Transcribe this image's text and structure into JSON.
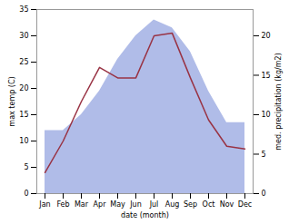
{
  "chart_data": {
    "type": "line",
    "categories": [
      "Jan",
      "Feb",
      "Mar",
      "Apr",
      "May",
      "Jun",
      "Jul",
      "Aug",
      "Sep",
      "Oct",
      "Nov",
      "Dec"
    ],
    "series": [
      {
        "type": "area",
        "axis": "y2",
        "color": "#b0bce8",
        "values": [
          8.0,
          8.0,
          10.0,
          13.0,
          17.0,
          20.0,
          22.0,
          21.0,
          18.0,
          13.0,
          9.0,
          9.0
        ]
      },
      {
        "type": "line",
        "color": "#993344",
        "values": [
          4.0,
          10.0,
          17.5,
          24.0,
          22.0,
          22.0,
          30.0,
          30.5,
          22.0,
          14.0,
          9.0,
          8.5
        ]
      }
    ],
    "xlabel": "date (month)",
    "ylabel": "max temp (C)",
    "y2label": "med. precipitation (kg/m2)",
    "ylim": [
      0,
      35
    ],
    "yticks": [
      0,
      5,
      10,
      15,
      20,
      25,
      30,
      35
    ],
    "y2lim": [
      0,
      23.33
    ],
    "y2ticks": [
      0,
      5,
      10,
      15,
      20
    ]
  }
}
